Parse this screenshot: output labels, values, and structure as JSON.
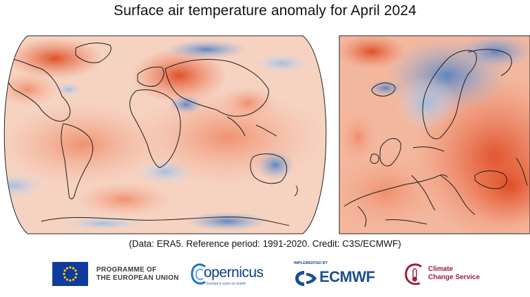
{
  "title": "Surface air temperature anomaly for April 2024",
  "credit": "(Data: ERA5.  Reference period: 1991-2020.  Credit: C3S/ECMWF)",
  "colors": {
    "warm": "#e4562c",
    "warm_light": "#f7c9b2",
    "neutral": "#fbf0ea",
    "cool": "#5b8ccc",
    "cool_light": "#c9d9ef"
  },
  "logos": {
    "eu_line1": "PROGRAMME OF",
    "eu_line2": "THE EUROPEAN UNION",
    "copernicus": "opernicus",
    "copernicus_tagline": "Europe's eyes on Earth",
    "ecmwf_implemented": "IMPLEMENTED BY",
    "ecmwf": "ECMWF",
    "c3s_line1": "Climate",
    "c3s_line2": "Change Service"
  },
  "icons": {
    "eu": "eu-flag-icon",
    "copernicus": "copernicus-c-icon",
    "ecmwf": "ecmwf-waves-icon",
    "c3s": "c3s-thermometer-icon"
  }
}
